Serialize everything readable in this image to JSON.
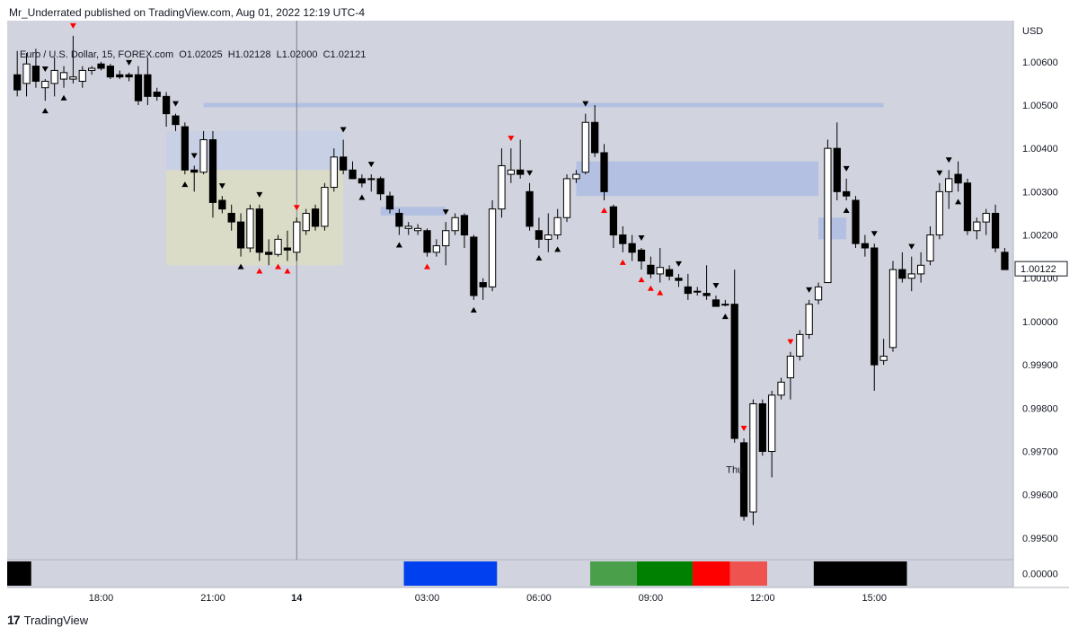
{
  "header": {
    "published": "Mr_Underrated published on TradingView.com, Aug 01, 2022 12:19 UTC-4"
  },
  "legend": {
    "symbol": "Euro / U.S. Dollar, 15, FOREX.com",
    "open": "O1.02025",
    "high": "H1.02128",
    "low": "L1.02000",
    "close": "C1.02121"
  },
  "footer": {
    "brand": "TradingView"
  },
  "chart_data": {
    "type": "candlestick",
    "currency": "USD",
    "y_ticks": [
      "1.00600",
      "1.00500",
      "1.00400",
      "1.00300",
      "1.00200",
      "1.00100",
      "1.00000",
      "0.99900",
      "0.99800",
      "0.99700",
      "0.99600",
      "0.99500"
    ],
    "ylim": [
      0.9945,
      1.00695
    ],
    "last_price": "1.00122",
    "x_ticks": [
      "18:00",
      "21:00",
      "14",
      "03:00",
      "06:00",
      "09:00",
      "12:00",
      "15:00"
    ],
    "day_label": "Thu",
    "indicator_value": "0.00000",
    "candles": [
      [
        1.0057,
        1.00625,
        1.0052,
        1.00535
      ],
      [
        1.0055,
        1.0062,
        1.0052,
        1.00595
      ],
      [
        1.0059,
        1.0063,
        1.0054,
        1.00555
      ],
      [
        1.0054,
        1.0056,
        1.0051,
        1.00555
      ],
      [
        1.0055,
        1.0061,
        1.0052,
        1.0058
      ],
      [
        1.0056,
        1.0059,
        1.0054,
        1.00575
      ],
      [
        1.0056,
        1.0066,
        1.0055,
        1.00565
      ],
      [
        1.00555,
        1.0059,
        1.0054,
        1.0058
      ],
      [
        1.0058,
        1.0059,
        1.0057,
        1.00585
      ],
      [
        1.00595,
        1.006,
        1.0058,
        1.00585
      ],
      [
        1.0059,
        1.00595,
        1.0056,
        1.00565
      ],
      [
        1.0057,
        1.0058,
        1.0056,
        1.00565
      ],
      [
        1.0057,
        1.00575,
        1.00555,
        1.00565
      ],
      [
        1.0057,
        1.0059,
        1.005,
        1.0051
      ],
      [
        1.0057,
        1.0061,
        1.005,
        1.0052
      ],
      [
        1.0053,
        1.0054,
        1.0051,
        1.0052
      ],
      [
        1.0052,
        1.0053,
        1.0045,
        1.0048
      ],
      [
        1.00475,
        1.0048,
        1.0044,
        1.00455
      ],
      [
        1.0045,
        1.0046,
        1.0034,
        1.0035
      ],
      [
        1.0035,
        1.0036,
        1.003,
        1.00345
      ],
      [
        1.00345,
        1.0044,
        1.0034,
        1.0042
      ],
      [
        1.0042,
        1.0044,
        1.0024,
        1.00275
      ],
      [
        1.0028,
        1.0029,
        1.0025,
        1.0026
      ],
      [
        1.0025,
        1.0027,
        1.0021,
        1.0023
      ],
      [
        1.0023,
        1.0025,
        1.0015,
        1.0017
      ],
      [
        1.0017,
        1.0027,
        1.0016,
        1.0026
      ],
      [
        1.0026,
        1.0027,
        1.0014,
        1.0016
      ],
      [
        1.0016,
        1.0019,
        1.0013,
        1.00155
      ],
      [
        1.00155,
        1.002,
        1.0015,
        1.0019
      ],
      [
        1.0017,
        1.0021,
        1.0014,
        1.00165
      ],
      [
        1.0016,
        1.0024,
        1.0014,
        1.0023
      ],
      [
        1.0021,
        1.0026,
        1.002,
        1.0025
      ],
      [
        1.0026,
        1.0027,
        1.0021,
        1.0022
      ],
      [
        1.0022,
        1.0032,
        1.0021,
        1.0031
      ],
      [
        1.0031,
        1.004,
        1.003,
        1.0038
      ],
      [
        1.0038,
        1.0042,
        1.0034,
        1.0035
      ],
      [
        1.0035,
        1.0037,
        1.0033,
        1.0033
      ],
      [
        1.0033,
        1.0034,
        1.0031,
        1.0032
      ],
      [
        1.0033,
        1.0034,
        1.003,
        1.0033
      ],
      [
        1.0033,
        1.00335,
        1.0028,
        1.00295
      ],
      [
        1.0029,
        1.003,
        1.0025,
        1.0026
      ],
      [
        1.0025,
        1.0026,
        1.002,
        1.0022
      ],
      [
        1.00215,
        1.0023,
        1.002,
        1.0022
      ],
      [
        1.0021,
        1.00225,
        1.002,
        1.00215
      ],
      [
        1.0021,
        1.00215,
        1.0015,
        1.0016
      ],
      [
        1.0016,
        1.0019,
        1.0015,
        1.00175
      ],
      [
        1.00175,
        1.0023,
        1.0013,
        1.0021
      ],
      [
        1.0021,
        1.0025,
        1.002,
        1.0024
      ],
      [
        1.00245,
        1.0025,
        1.0017,
        1.002
      ],
      [
        1.00195,
        1.002,
        1.0005,
        1.0006
      ],
      [
        1.0009,
        1.001,
        1.0005,
        1.0008
      ],
      [
        1.0008,
        1.0028,
        1.0007,
        1.0026
      ],
      [
        1.0026,
        1.004,
        1.0024,
        1.0036
      ],
      [
        1.0034,
        1.004,
        1.0032,
        1.0035
      ],
      [
        1.0035,
        1.0042,
        1.0033,
        1.0034
      ],
      [
        1.003,
        1.0032,
        1.0021,
        1.0022
      ],
      [
        1.0021,
        1.0024,
        1.0017,
        1.0019
      ],
      [
        1.0019,
        1.0025,
        1.0016,
        1.002
      ],
      [
        1.002,
        1.0026,
        1.0019,
        1.0024
      ],
      [
        1.0024,
        1.0034,
        1.0023,
        1.0033
      ],
      [
        1.0033,
        1.0035,
        1.0032,
        1.0034
      ],
      [
        1.00345,
        1.0048,
        1.0034,
        1.0046
      ],
      [
        1.0046,
        1.005,
        1.0038,
        1.0039
      ],
      [
        1.0039,
        1.0041,
        1.0028,
        1.003
      ],
      [
        1.00265,
        1.0027,
        1.0017,
        1.002
      ],
      [
        1.002,
        1.0022,
        1.0016,
        1.0018
      ],
      [
        1.0018,
        1.002,
        1.0014,
        1.0016
      ],
      [
        1.00165,
        1.0017,
        1.0012,
        1.0014
      ],
      [
        1.0013,
        1.0015,
        1.001,
        1.0011
      ],
      [
        1.0011,
        1.0017,
        1.0009,
        1.00125
      ],
      [
        1.0012,
        1.0013,
        1.00095,
        1.00105
      ],
      [
        1.001,
        1.0011,
        1.0008,
        1.00095
      ],
      [
        1.0008,
        1.0011,
        1.0005,
        1.00065
      ],
      [
        1.0007,
        1.0008,
        1.0006,
        1.0007
      ],
      [
        1.00065,
        1.0013,
        1.0005,
        1.0006
      ],
      [
        1.0005,
        1.0006,
        1.0004,
        1.00035
      ],
      [
        1.0004,
        1.0005,
        1.00035,
        1.0004
      ],
      [
        1.0004,
        1.0012,
        0.9972,
        0.9973
      ],
      [
        0.9972,
        0.9973,
        0.9954,
        0.9955
      ],
      [
        0.9956,
        0.9982,
        0.9953,
        0.9981
      ],
      [
        0.9981,
        0.9982,
        0.9969,
        0.997
      ],
      [
        0.997,
        0.9984,
        0.9964,
        0.9983
      ],
      [
        0.9983,
        0.9987,
        0.9982,
        0.9986
      ],
      [
        0.9987,
        0.9993,
        0.9982,
        0.9992
      ],
      [
        0.9992,
        0.9998,
        0.9991,
        0.9997
      ],
      [
        0.9997,
        1.0005,
        0.9996,
        1.0004
      ],
      [
        1.0005,
        1.0009,
        1.0004,
        1.0008
      ],
      [
        1.0009,
        1.0042,
        1.0009,
        1.004
      ],
      [
        1.004,
        1.0046,
        1.0028,
        1.003
      ],
      [
        1.003,
        1.0033,
        1.0028,
        1.0029
      ],
      [
        1.0028,
        1.0029,
        1.0017,
        1.0018
      ],
      [
        1.0018,
        1.002,
        1.0015,
        1.0017
      ],
      [
        1.0017,
        1.0018,
        0.9984,
        0.999
      ],
      [
        0.9991,
        0.9996,
        0.999,
        0.9992
      ],
      [
        0.9994,
        1.0014,
        0.9993,
        1.0012
      ],
      [
        1.0012,
        1.0016,
        1.0009,
        1.001
      ],
      [
        1.001,
        1.0015,
        1.0007,
        1.0011
      ],
      [
        1.0011,
        1.0016,
        1.0009,
        1.0013
      ],
      [
        1.0014,
        1.0022,
        1.0013,
        1.002
      ],
      [
        1.002,
        1.0032,
        1.0019,
        1.003
      ],
      [
        1.003,
        1.0035,
        1.0026,
        1.0033
      ],
      [
        1.0034,
        1.0037,
        1.003,
        1.0032
      ],
      [
        1.0032,
        1.0033,
        1.002,
        1.0021
      ],
      [
        1.0021,
        1.0024,
        1.0019,
        1.0023
      ],
      [
        1.0023,
        1.0026,
        1.002,
        1.0025
      ],
      [
        1.0025,
        1.0027,
        1.0016,
        1.0017
      ],
      [
        1.0016,
        1.0017,
        1.0012,
        1.0012
      ]
    ],
    "marks": [
      {
        "i": 3,
        "t": "down",
        "c": "black"
      },
      {
        "i": 3,
        "t": "up",
        "c": "black"
      },
      {
        "i": 6,
        "t": "down",
        "c": "red"
      },
      {
        "i": 5,
        "t": "up",
        "c": "black"
      },
      {
        "i": 12,
        "t": "down",
        "c": "black"
      },
      {
        "i": 17,
        "t": "down",
        "c": "black"
      },
      {
        "i": 18,
        "t": "up",
        "c": "black"
      },
      {
        "i": 19,
        "t": "down",
        "c": "black"
      },
      {
        "i": 22,
        "t": "down",
        "c": "black"
      },
      {
        "i": 24,
        "t": "up",
        "c": "black"
      },
      {
        "i": 26,
        "t": "down",
        "c": "black"
      },
      {
        "i": 26,
        "t": "up",
        "c": "red"
      },
      {
        "i": 28,
        "t": "up",
        "c": "red"
      },
      {
        "i": 30,
        "t": "down",
        "c": "red"
      },
      {
        "i": 29,
        "t": "up",
        "c": "red"
      },
      {
        "i": 35,
        "t": "down",
        "c": "black"
      },
      {
        "i": 37,
        "t": "up",
        "c": "black"
      },
      {
        "i": 38,
        "t": "down",
        "c": "black"
      },
      {
        "i": 41,
        "t": "up",
        "c": "black"
      },
      {
        "i": 44,
        "t": "up",
        "c": "red"
      },
      {
        "i": 46,
        "t": "down",
        "c": "black"
      },
      {
        "i": 49,
        "t": "up",
        "c": "black"
      },
      {
        "i": 53,
        "t": "down",
        "c": "red"
      },
      {
        "i": 55,
        "t": "down",
        "c": "black"
      },
      {
        "i": 56,
        "t": "up",
        "c": "black"
      },
      {
        "i": 58,
        "t": "up",
        "c": "black"
      },
      {
        "i": 61,
        "t": "down",
        "c": "black"
      },
      {
        "i": 63,
        "t": "up",
        "c": "red"
      },
      {
        "i": 65,
        "t": "up",
        "c": "red"
      },
      {
        "i": 67,
        "t": "down",
        "c": "black"
      },
      {
        "i": 67,
        "t": "up",
        "c": "red"
      },
      {
        "i": 68,
        "t": "up",
        "c": "red"
      },
      {
        "i": 69,
        "t": "up",
        "c": "red"
      },
      {
        "i": 71,
        "t": "down",
        "c": "black"
      },
      {
        "i": 75,
        "t": "down",
        "c": "black"
      },
      {
        "i": 76,
        "t": "up",
        "c": "black"
      },
      {
        "i": 78,
        "t": "down",
        "c": "red"
      },
      {
        "i": 83,
        "t": "down",
        "c": "red"
      },
      {
        "i": 85,
        "t": "down",
        "c": "black"
      },
      {
        "i": 89,
        "t": "down",
        "c": "black"
      },
      {
        "i": 89,
        "t": "up",
        "c": "black"
      },
      {
        "i": 92,
        "t": "down",
        "c": "black"
      },
      {
        "i": 96,
        "t": "down",
        "c": "black"
      },
      {
        "i": 99,
        "t": "down",
        "c": "black"
      },
      {
        "i": 100,
        "t": "down",
        "c": "black"
      },
      {
        "i": 101,
        "t": "up",
        "c": "black"
      }
    ],
    "zones": [
      {
        "x0": 20,
        "x1": 93,
        "y0": 1.00505,
        "y1": 1.00495,
        "color": "#aebce3"
      },
      {
        "x0": 16,
        "x1": 35,
        "y0": 1.0044,
        "y1": 1.0035,
        "color": "#c7cfe6"
      },
      {
        "x0": 16,
        "x1": 35,
        "y0": 1.0035,
        "y1": 1.0013,
        "color": "#ddddc4"
      },
      {
        "x0": 39,
        "x1": 46,
        "y0": 1.00265,
        "y1": 1.00245,
        "color": "#aebce3"
      },
      {
        "x0": 60,
        "x1": 86,
        "y0": 1.0037,
        "y1": 1.0029,
        "color": "#aebce3"
      },
      {
        "x0": 86,
        "x1": 89,
        "y0": 1.0024,
        "y1": 1.0019,
        "color": "#aebce3"
      }
    ],
    "indicator_bar": [
      {
        "i0": 0,
        "i1": 2,
        "color": "#000000"
      },
      {
        "i0": 42,
        "i1": 52,
        "color": "#0040ee"
      },
      {
        "i0": 62,
        "i1": 67,
        "color": "#4a9f4a"
      },
      {
        "i0": 67,
        "i1": 73,
        "color": "#008000"
      },
      {
        "i0": 73,
        "i1": 77,
        "color": "#ff0000"
      },
      {
        "i0": 77,
        "i1": 81,
        "color": "#ef5350"
      },
      {
        "i0": 86,
        "i1": 96,
        "color": "#000000"
      }
    ]
  }
}
